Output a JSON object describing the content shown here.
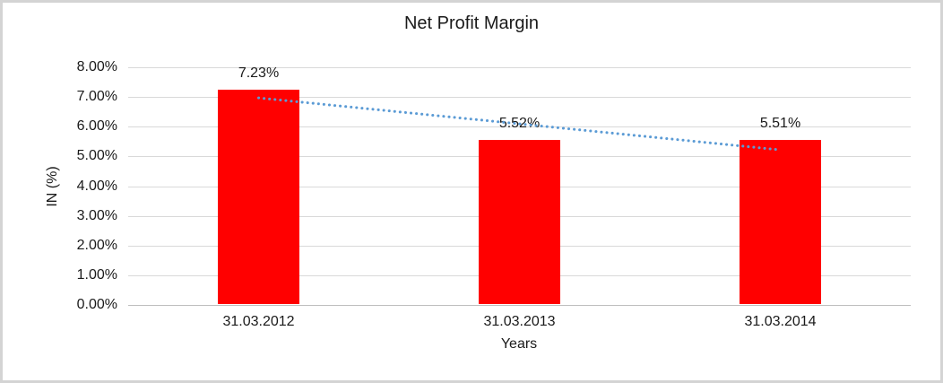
{
  "frame": {
    "background_color": "#ffffff",
    "border_color": "#d4d4d4"
  },
  "chart_data": {
    "type": "bar",
    "title": "Net Profit Margin",
    "xlabel": "Years",
    "ylabel": "IN (%)",
    "categories": [
      "31.03.2012",
      "31.03.2013",
      "31.03.2014"
    ],
    "values": [
      7.23,
      5.52,
      5.51
    ],
    "data_labels": [
      "7.23%",
      "5.52%",
      "5.51%"
    ],
    "ylim": [
      0,
      8
    ],
    "ytick_step": 1,
    "ytick_labels": [
      "0.00%",
      "1.00%",
      "2.00%",
      "3.00%",
      "4.00%",
      "5.00%",
      "6.00%",
      "7.00%",
      "8.00%"
    ],
    "grid": true,
    "legend_position": "none",
    "bar_color": "#ff0000",
    "gridline_color": "#d9d9d9",
    "text_color": "#1a1a1a",
    "trendline": {
      "type": "linear",
      "style": "dotted",
      "color": "#5b9bd5",
      "start_value": 6.97,
      "end_value": 5.22
    }
  }
}
